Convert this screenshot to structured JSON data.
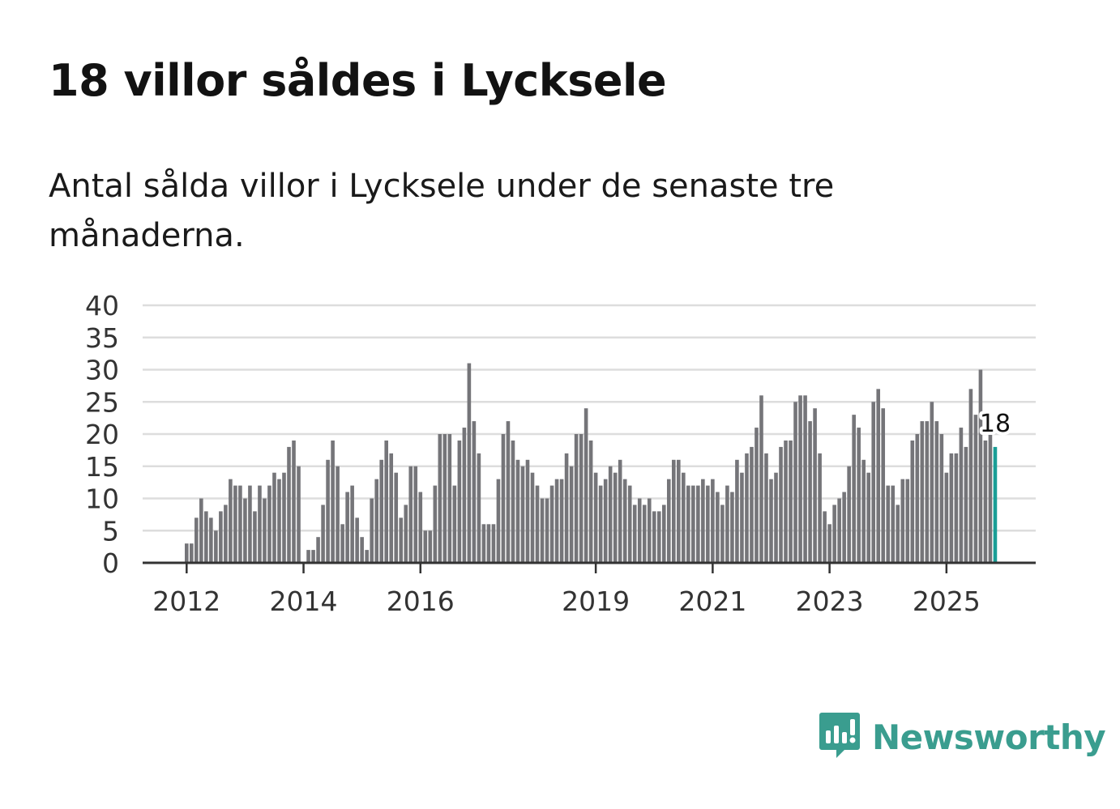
{
  "title": "18 villor såldes i Lycksele",
  "subtitle": "Antal sålda villor i Lycksele under de senaste tre månaderna.",
  "brand": {
    "name": "Newsworthy",
    "color": "#3a9d8f",
    "icon": "newsworthy-logo-icon"
  },
  "colors": {
    "bar": "#757579",
    "highlight": "#1a9e96",
    "grid": "#dddddd",
    "axis": "#333333"
  },
  "chart_data": {
    "type": "bar",
    "title": "18 villor såldes i Lycksele",
    "xlabel": "",
    "ylabel": "",
    "ylim": [
      0,
      40
    ],
    "yticks": [
      0,
      5,
      10,
      15,
      20,
      25,
      30,
      35,
      40
    ],
    "grid": true,
    "start": "2012-01",
    "xtick_labels": [
      {
        "label": "2012",
        "index": 0
      },
      {
        "label": "2014",
        "index": 24
      },
      {
        "label": "2016",
        "index": 48
      },
      {
        "label": "2019",
        "index": 84
      },
      {
        "label": "2021",
        "index": 108
      },
      {
        "label": "2023",
        "index": 132
      },
      {
        "label": "2025",
        "index": 156
      }
    ],
    "values": [
      3,
      3,
      7,
      10,
      8,
      7,
      5,
      8,
      9,
      13,
      12,
      12,
      10,
      12,
      8,
      12,
      10,
      12,
      14,
      13,
      14,
      18,
      19,
      15,
      null,
      2,
      2,
      4,
      9,
      16,
      19,
      15,
      6,
      11,
      12,
      7,
      4,
      2,
      10,
      13,
      16,
      19,
      17,
      14,
      7,
      9,
      15,
      15,
      11,
      5,
      5,
      12,
      20,
      20,
      20,
      12,
      19,
      21,
      31,
      22,
      17,
      6,
      6,
      6,
      13,
      20,
      22,
      19,
      16,
      15,
      16,
      14,
      12,
      10,
      10,
      12,
      13,
      13,
      17,
      15,
      20,
      20,
      24,
      19,
      14,
      12,
      13,
      15,
      14,
      16,
      13,
      12,
      9,
      10,
      9,
      10,
      8,
      8,
      9,
      13,
      16,
      16,
      14,
      12,
      12,
      12,
      13,
      12,
      13,
      11,
      9,
      12,
      11,
      16,
      14,
      17,
      18,
      21,
      26,
      17,
      13,
      14,
      18,
      19,
      19,
      25,
      26,
      26,
      22,
      24,
      17,
      8,
      6,
      9,
      10,
      11,
      15,
      23,
      21,
      16,
      14,
      25,
      27,
      24,
      12,
      12,
      9,
      13,
      13,
      19,
      20,
      22,
      22,
      25,
      22,
      20,
      14,
      17,
      17,
      21,
      18,
      27,
      23,
      30,
      19,
      20,
      18
    ],
    "highlight_last": true,
    "last_value_label": "18"
  }
}
